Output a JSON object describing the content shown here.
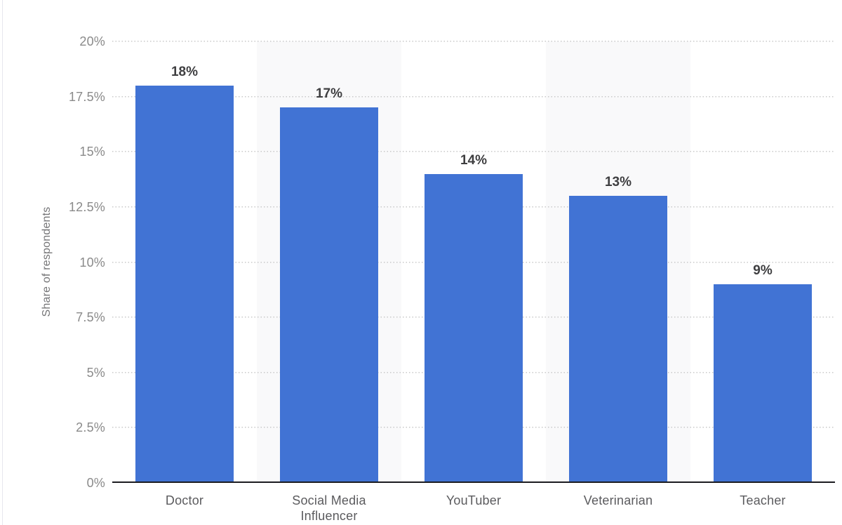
{
  "chart_data": {
    "type": "bar",
    "title": "",
    "categories": [
      "Doctor",
      "Social Media Influencer",
      "YouTuber",
      "Veterinarian",
      "Teacher"
    ],
    "values": [
      18,
      17,
      14,
      13,
      9
    ],
    "data_labels": [
      "18%",
      "17%",
      "14%",
      "13%",
      "9%"
    ],
    "xlabel": "",
    "ylabel": "Share of respondents",
    "ylim": [
      0,
      20
    ],
    "yticks": [
      {
        "value": 0,
        "label": "0%"
      },
      {
        "value": 2.5,
        "label": "2.5%"
      },
      {
        "value": 5,
        "label": "5%"
      },
      {
        "value": 7.5,
        "label": "7.5%"
      },
      {
        "value": 10,
        "label": "10%"
      },
      {
        "value": 12.5,
        "label": "12.5%"
      },
      {
        "value": 15,
        "label": "15%"
      },
      {
        "value": 17.5,
        "label": "17.5%"
      },
      {
        "value": 20,
        "label": "20%"
      }
    ],
    "grid": "horizontal-dotted",
    "legend": "none",
    "bar_color": "#4173d4",
    "stripe_color": "#f9f9fa",
    "striped_columns": [
      1,
      3
    ],
    "axis_color": "#1b1b20"
  }
}
